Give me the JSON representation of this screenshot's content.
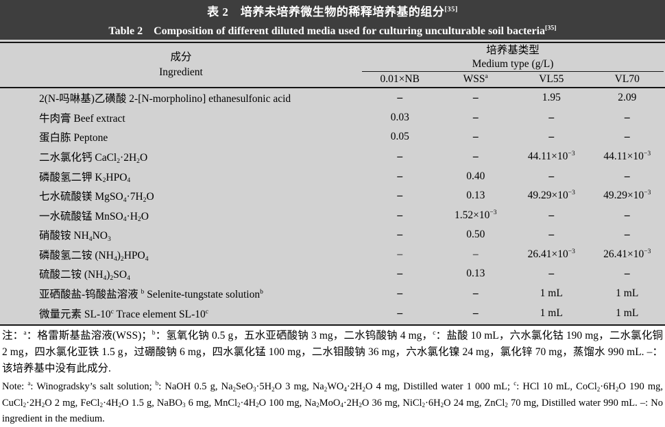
{
  "colors": {
    "banner_bg": "#3e3e3e",
    "banner_text": "#ffffff",
    "table_bg": "#d2d2d2",
    "rule": "#151515",
    "page_bg": "#ffffff"
  },
  "title": {
    "zh": "表 2　培养未培养微生物的稀释培养基的组分^[35]^",
    "en": "Table 2　Composition of different diluted media used for culturing unculturable soil bacteria^[35]^"
  },
  "table": {
    "ingredient_header": {
      "zh": "成分",
      "en": "Ingredient"
    },
    "medium_group": {
      "zh": "培养基类型",
      "en": "Medium type (g/L)"
    },
    "columns": [
      "0.01×NB",
      "WSS^a^",
      "VL55",
      "VL70"
    ],
    "rows": [
      {
        "name": "2(N-吗啉基)乙磺酸 2-[N-morpholino] ethanesulfonic acid",
        "values": [
          "–",
          "–",
          "1.95",
          "2.09"
        ]
      },
      {
        "name": "牛肉膏 Beef extract",
        "values": [
          "0.03",
          "–",
          "–",
          "–"
        ]
      },
      {
        "name": "蛋白胨 Peptone",
        "values": [
          "0.05",
          "–",
          "–",
          "–"
        ]
      },
      {
        "name": "二水氯化钙 CaCl~2~·2H~2~O",
        "values": [
          "–",
          "–",
          "44.11×10^−3^",
          "44.11×10^−3^"
        ]
      },
      {
        "name": "磷酸氢二钾 K~2~HPO~4~",
        "values": [
          "–",
          "0.40",
          "–",
          "–"
        ]
      },
      {
        "name": "七水硫酸镁 MgSO~4~·7H~2~O",
        "values": [
          "–",
          "0.13",
          "49.29×10^−3^",
          "49.29×10^−3^"
        ]
      },
      {
        "name": "一水硫酸锰 MnSO~4~·H~2~O",
        "values": [
          "–",
          "1.52×10^−3^",
          "–",
          "–"
        ]
      },
      {
        "name": "硝酸铵 NH~4~NO~3~",
        "values": [
          "–",
          "0.50",
          "–",
          "–"
        ]
      },
      {
        "name": "磷酸氢二铵 (NH~4~)~2~HPO~4~",
        "values": [
          "–",
          "–",
          "26.41×10^−3^",
          "26.41×10^−3^"
        ],
        "light_dash": true
      },
      {
        "name": "硫酸二铵 (NH~4~)~2~SO~4~",
        "values": [
          "–",
          "0.13",
          "–",
          "–"
        ]
      },
      {
        "name": "亚硒酸盐-钨酸盐溶液 ^b^ Selenite-tungstate solution^b^",
        "values": [
          "–",
          "–",
          "1 mL",
          "1 mL"
        ]
      },
      {
        "name": "微量元素 SL-10^c^ Trace element SL-10^c^",
        "values": [
          "–",
          "–",
          "1 mL",
          "1 mL"
        ]
      }
    ]
  },
  "notes": {
    "zh": "注：^a^：格雷斯基盐溶液(WSS)；^b^：氢氧化钠 0.5 g，五水亚硒酸钠 3 mg，二水钨酸钠 4 mg，^c^：盐酸 10 mL，六水氯化钴 190 mg，二水氯化铜 2 mg，四水氯化亚铁 1.5 g，过硼酸钠 6 mg，四水氯化锰 100 mg，二水钼酸钠 36 mg，六水氯化镍 24 mg，氯化锌 70 mg，蒸馏水 990 mL. –：该培养基中没有此成分.",
    "en": "Note: ^a^: Winogradsky’s salt solution; ^b^: NaOH 0.5 g, Na~2~SeO~3~·5H~2~O 3 mg, Na~2~WO~4~·2H~2~O 4 mg, Distilled water 1 000 mL; ^c^: HCl 10 mL, CoCl~2~·6H~2~O 190 mg, CuCl~2~·2H~2~O 2 mg, FeCl~2~·4H~2~O 1.5 g, NaBO~3~ 6 mg, MnCl~2~·4H~2~O 100 mg, Na~2~MoO~4~·2H~2~O 36 mg, NiCl~2~·6H~2~O 24 mg, ZnCl~2~ 70 mg, Distilled water 990 mL. –: No ingredient in the medium."
  }
}
